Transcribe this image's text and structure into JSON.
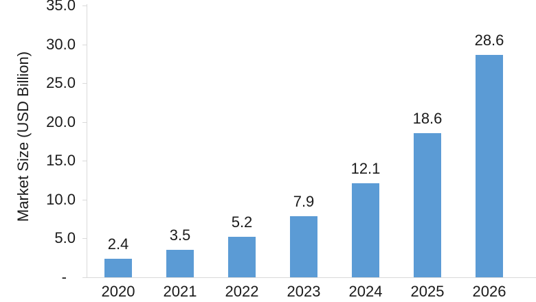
{
  "chart_data": {
    "type": "bar",
    "title": "",
    "categories": [
      "2020",
      "2021",
      "2022",
      "2023",
      "2024",
      "2025",
      "2026"
    ],
    "values": [
      2.4,
      3.5,
      5.2,
      7.9,
      12.1,
      18.6,
      28.6
    ],
    "data_labels": [
      "2.4",
      "3.5",
      "5.2",
      "7.9",
      "12.1",
      "18.6",
      "28.6"
    ],
    "xlabel": "",
    "ylabel": "Market Size (USD Billion)",
    "ylim": [
      0,
      35
    ],
    "y_ticks": [
      {
        "value": 0,
        "label": "-"
      },
      {
        "value": 5,
        "label": "5.0"
      },
      {
        "value": 10,
        "label": "10.0"
      },
      {
        "value": 15,
        "label": "15.0"
      },
      {
        "value": 20,
        "label": "20.0"
      },
      {
        "value": 25,
        "label": "25.0"
      },
      {
        "value": 30,
        "label": "30.0"
      },
      {
        "value": 35,
        "label": "35.0"
      }
    ],
    "grid": false,
    "legend": "none",
    "data_labels_on": true,
    "bar_color": "#5B9BD5",
    "axis_color": "#D9D9D9",
    "text_color": "#1A1A1A"
  }
}
